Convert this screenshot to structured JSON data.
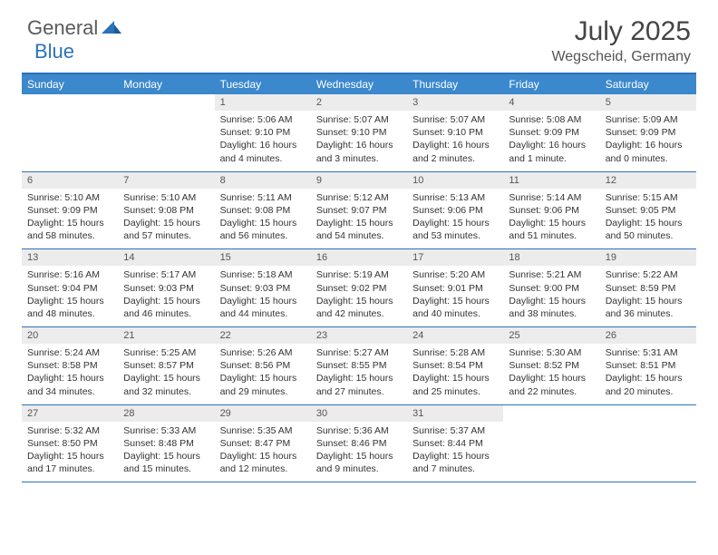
{
  "logo": {
    "text1": "General",
    "text2": "Blue"
  },
  "title": "July 2025",
  "location": "Wegscheid, Germany",
  "colors": {
    "header_bg": "#3b88cc",
    "header_text": "#ffffff",
    "border": "#2b72b8",
    "daynum_bg": "#ececec",
    "logo_gray": "#5a5a5a",
    "logo_blue": "#2b72b8"
  },
  "day_names": [
    "Sunday",
    "Monday",
    "Tuesday",
    "Wednesday",
    "Thursday",
    "Friday",
    "Saturday"
  ],
  "weeks": [
    [
      {
        "n": "",
        "sr": "",
        "ss": "",
        "dl": ""
      },
      {
        "n": "",
        "sr": "",
        "ss": "",
        "dl": ""
      },
      {
        "n": "1",
        "sr": "Sunrise: 5:06 AM",
        "ss": "Sunset: 9:10 PM",
        "dl": "Daylight: 16 hours and 4 minutes."
      },
      {
        "n": "2",
        "sr": "Sunrise: 5:07 AM",
        "ss": "Sunset: 9:10 PM",
        "dl": "Daylight: 16 hours and 3 minutes."
      },
      {
        "n": "3",
        "sr": "Sunrise: 5:07 AM",
        "ss": "Sunset: 9:10 PM",
        "dl": "Daylight: 16 hours and 2 minutes."
      },
      {
        "n": "4",
        "sr": "Sunrise: 5:08 AM",
        "ss": "Sunset: 9:09 PM",
        "dl": "Daylight: 16 hours and 1 minute."
      },
      {
        "n": "5",
        "sr": "Sunrise: 5:09 AM",
        "ss": "Sunset: 9:09 PM",
        "dl": "Daylight: 16 hours and 0 minutes."
      }
    ],
    [
      {
        "n": "6",
        "sr": "Sunrise: 5:10 AM",
        "ss": "Sunset: 9:09 PM",
        "dl": "Daylight: 15 hours and 58 minutes."
      },
      {
        "n": "7",
        "sr": "Sunrise: 5:10 AM",
        "ss": "Sunset: 9:08 PM",
        "dl": "Daylight: 15 hours and 57 minutes."
      },
      {
        "n": "8",
        "sr": "Sunrise: 5:11 AM",
        "ss": "Sunset: 9:08 PM",
        "dl": "Daylight: 15 hours and 56 minutes."
      },
      {
        "n": "9",
        "sr": "Sunrise: 5:12 AM",
        "ss": "Sunset: 9:07 PM",
        "dl": "Daylight: 15 hours and 54 minutes."
      },
      {
        "n": "10",
        "sr": "Sunrise: 5:13 AM",
        "ss": "Sunset: 9:06 PM",
        "dl": "Daylight: 15 hours and 53 minutes."
      },
      {
        "n": "11",
        "sr": "Sunrise: 5:14 AM",
        "ss": "Sunset: 9:06 PM",
        "dl": "Daylight: 15 hours and 51 minutes."
      },
      {
        "n": "12",
        "sr": "Sunrise: 5:15 AM",
        "ss": "Sunset: 9:05 PM",
        "dl": "Daylight: 15 hours and 50 minutes."
      }
    ],
    [
      {
        "n": "13",
        "sr": "Sunrise: 5:16 AM",
        "ss": "Sunset: 9:04 PM",
        "dl": "Daylight: 15 hours and 48 minutes."
      },
      {
        "n": "14",
        "sr": "Sunrise: 5:17 AM",
        "ss": "Sunset: 9:03 PM",
        "dl": "Daylight: 15 hours and 46 minutes."
      },
      {
        "n": "15",
        "sr": "Sunrise: 5:18 AM",
        "ss": "Sunset: 9:03 PM",
        "dl": "Daylight: 15 hours and 44 minutes."
      },
      {
        "n": "16",
        "sr": "Sunrise: 5:19 AM",
        "ss": "Sunset: 9:02 PM",
        "dl": "Daylight: 15 hours and 42 minutes."
      },
      {
        "n": "17",
        "sr": "Sunrise: 5:20 AM",
        "ss": "Sunset: 9:01 PM",
        "dl": "Daylight: 15 hours and 40 minutes."
      },
      {
        "n": "18",
        "sr": "Sunrise: 5:21 AM",
        "ss": "Sunset: 9:00 PM",
        "dl": "Daylight: 15 hours and 38 minutes."
      },
      {
        "n": "19",
        "sr": "Sunrise: 5:22 AM",
        "ss": "Sunset: 8:59 PM",
        "dl": "Daylight: 15 hours and 36 minutes."
      }
    ],
    [
      {
        "n": "20",
        "sr": "Sunrise: 5:24 AM",
        "ss": "Sunset: 8:58 PM",
        "dl": "Daylight: 15 hours and 34 minutes."
      },
      {
        "n": "21",
        "sr": "Sunrise: 5:25 AM",
        "ss": "Sunset: 8:57 PM",
        "dl": "Daylight: 15 hours and 32 minutes."
      },
      {
        "n": "22",
        "sr": "Sunrise: 5:26 AM",
        "ss": "Sunset: 8:56 PM",
        "dl": "Daylight: 15 hours and 29 minutes."
      },
      {
        "n": "23",
        "sr": "Sunrise: 5:27 AM",
        "ss": "Sunset: 8:55 PM",
        "dl": "Daylight: 15 hours and 27 minutes."
      },
      {
        "n": "24",
        "sr": "Sunrise: 5:28 AM",
        "ss": "Sunset: 8:54 PM",
        "dl": "Daylight: 15 hours and 25 minutes."
      },
      {
        "n": "25",
        "sr": "Sunrise: 5:30 AM",
        "ss": "Sunset: 8:52 PM",
        "dl": "Daylight: 15 hours and 22 minutes."
      },
      {
        "n": "26",
        "sr": "Sunrise: 5:31 AM",
        "ss": "Sunset: 8:51 PM",
        "dl": "Daylight: 15 hours and 20 minutes."
      }
    ],
    [
      {
        "n": "27",
        "sr": "Sunrise: 5:32 AM",
        "ss": "Sunset: 8:50 PM",
        "dl": "Daylight: 15 hours and 17 minutes."
      },
      {
        "n": "28",
        "sr": "Sunrise: 5:33 AM",
        "ss": "Sunset: 8:48 PM",
        "dl": "Daylight: 15 hours and 15 minutes."
      },
      {
        "n": "29",
        "sr": "Sunrise: 5:35 AM",
        "ss": "Sunset: 8:47 PM",
        "dl": "Daylight: 15 hours and 12 minutes."
      },
      {
        "n": "30",
        "sr": "Sunrise: 5:36 AM",
        "ss": "Sunset: 8:46 PM",
        "dl": "Daylight: 15 hours and 9 minutes."
      },
      {
        "n": "31",
        "sr": "Sunrise: 5:37 AM",
        "ss": "Sunset: 8:44 PM",
        "dl": "Daylight: 15 hours and 7 minutes."
      },
      {
        "n": "",
        "sr": "",
        "ss": "",
        "dl": ""
      },
      {
        "n": "",
        "sr": "",
        "ss": "",
        "dl": ""
      }
    ]
  ]
}
